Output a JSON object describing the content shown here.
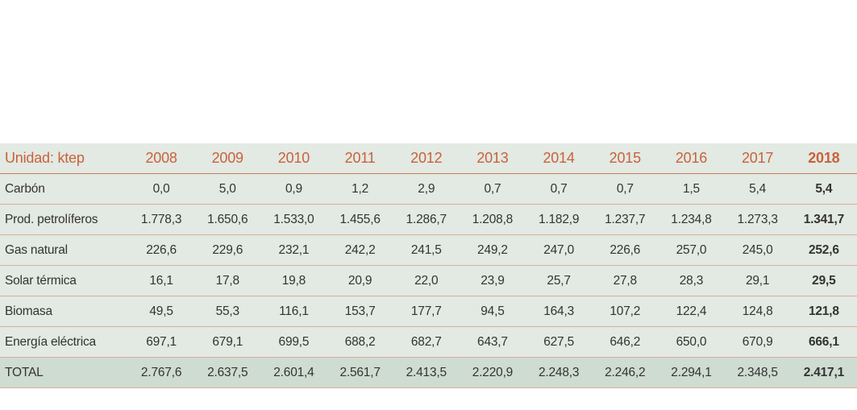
{
  "table": {
    "header": [
      "Unidad: ktep",
      "2008",
      "2009",
      "2010",
      "2011",
      "2012",
      "2013",
      "2014",
      "2015",
      "2016",
      "2017",
      "2018"
    ],
    "rows": [
      [
        "Carbón",
        "0,0",
        "5,0",
        "0,9",
        "1,2",
        "2,9",
        "0,7",
        "0,7",
        "0,7",
        "1,5",
        "5,4",
        "5,4"
      ],
      [
        "Prod. petrolíferos",
        "1.778,3",
        "1.650,6",
        "1.533,0",
        "1.455,6",
        "1.286,7",
        "1.208,8",
        "1.182,9",
        "1.237,7",
        "1.234,8",
        "1.273,3",
        "1.341,7"
      ],
      [
        "Gas natural",
        "226,6",
        "229,6",
        "232,1",
        "242,2",
        "241,5",
        "249,2",
        "247,0",
        "226,6",
        "257,0",
        "245,0",
        "252,6"
      ],
      [
        "Solar térmica",
        "16,1",
        "17,8",
        "19,8",
        "20,9",
        "22,0",
        "23,9",
        "25,7",
        "27,8",
        "28,3",
        "29,1",
        "29,5"
      ],
      [
        "Biomasa",
        "49,5",
        "55,3",
        "116,1",
        "153,7",
        "177,7",
        "94,5",
        "164,3",
        "107,2",
        "122,4",
        "124,8",
        "121,8"
      ],
      [
        "Energía eléctrica",
        "697,1",
        "679,1",
        "699,5",
        "688,2",
        "682,7",
        "643,7",
        "627,5",
        "646,2",
        "650,0",
        "670,9",
        "666,1"
      ],
      [
        "TOTAL",
        "2.767,6",
        "2.637,5",
        "2.601,4",
        "2.561,7",
        "2.413,5",
        "2.220,9",
        "2.248,3",
        "2.246,2",
        "2.294,1",
        "2.348,5",
        "2.417,1"
      ]
    ]
  }
}
